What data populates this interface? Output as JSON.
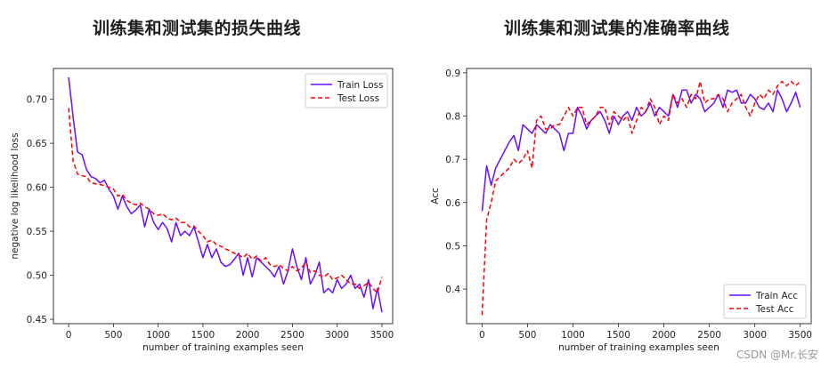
{
  "chart_data": [
    {
      "type": "line",
      "title": "训练集和测试集的损失曲线",
      "xlabel": "number of training examples seen",
      "ylabel": "negative log likelihood loss",
      "xlim": [
        -170,
        3620
      ],
      "ylim": [
        0.445,
        0.735
      ],
      "xticks": [
        0,
        500,
        1000,
        1500,
        2000,
        2500,
        3000,
        3500
      ],
      "yticks": [
        0.45,
        0.5,
        0.55,
        0.6,
        0.65,
        0.7
      ],
      "legend_position": "top-right",
      "x": [
        0,
        50,
        100,
        150,
        200,
        250,
        300,
        350,
        400,
        450,
        500,
        550,
        600,
        650,
        700,
        750,
        800,
        850,
        900,
        950,
        1000,
        1050,
        1100,
        1150,
        1200,
        1250,
        1300,
        1350,
        1400,
        1450,
        1500,
        1550,
        1600,
        1650,
        1700,
        1750,
        1800,
        1850,
        1900,
        1950,
        2000,
        2050,
        2100,
        2150,
        2200,
        2250,
        2300,
        2350,
        2400,
        2450,
        2500,
        2550,
        2600,
        2650,
        2700,
        2750,
        2800,
        2850,
        2900,
        2950,
        3000,
        3050,
        3100,
        3150,
        3200,
        3250,
        3300,
        3350,
        3400,
        3450,
        3500
      ],
      "series": [
        {
          "name": "Train Loss",
          "color": "#6a0dff",
          "dashed": false,
          "values": [
            0.725,
            0.68,
            0.64,
            0.637,
            0.62,
            0.612,
            0.61,
            0.605,
            0.608,
            0.598,
            0.59,
            0.575,
            0.59,
            0.578,
            0.57,
            0.574,
            0.58,
            0.555,
            0.575,
            0.56,
            0.552,
            0.56,
            0.553,
            0.538,
            0.56,
            0.545,
            0.55,
            0.545,
            0.555,
            0.538,
            0.52,
            0.535,
            0.52,
            0.53,
            0.515,
            0.51,
            0.512,
            0.518,
            0.525,
            0.5,
            0.52,
            0.498,
            0.52,
            0.515,
            0.51,
            0.505,
            0.498,
            0.51,
            0.49,
            0.505,
            0.53,
            0.51,
            0.495,
            0.52,
            0.49,
            0.5,
            0.515,
            0.48,
            0.485,
            0.48,
            0.495,
            0.485,
            0.49,
            0.5,
            0.485,
            0.49,
            0.475,
            0.495,
            0.462,
            0.485,
            0.458
          ]
        },
        {
          "name": "Test Loss",
          "color": "#ff0000",
          "dashed": true,
          "values": [
            0.69,
            0.63,
            0.615,
            0.613,
            0.612,
            0.605,
            0.604,
            0.603,
            0.602,
            0.6,
            0.598,
            0.59,
            0.592,
            0.585,
            0.582,
            0.58,
            0.582,
            0.578,
            0.575,
            0.57,
            0.568,
            0.57,
            0.565,
            0.563,
            0.565,
            0.56,
            0.56,
            0.555,
            0.556,
            0.55,
            0.545,
            0.538,
            0.54,
            0.535,
            0.533,
            0.53,
            0.528,
            0.525,
            0.523,
            0.52,
            0.525,
            0.518,
            0.522,
            0.516,
            0.52,
            0.512,
            0.51,
            0.512,
            0.508,
            0.505,
            0.51,
            0.505,
            0.508,
            0.515,
            0.503,
            0.505,
            0.5,
            0.498,
            0.502,
            0.495,
            0.497,
            0.5,
            0.495,
            0.49,
            0.49,
            0.485,
            0.488,
            0.492,
            0.485,
            0.48,
            0.498
          ]
        }
      ]
    },
    {
      "type": "line",
      "title": "训练集和测试集的准确率曲线",
      "xlabel": "number of training examples seen",
      "ylabel": "Acc",
      "xlim": [
        -170,
        3620
      ],
      "ylim": [
        0.32,
        0.91
      ],
      "xticks": [
        0,
        500,
        1000,
        1500,
        2000,
        2500,
        3000,
        3500
      ],
      "yticks": [
        0.4,
        0.5,
        0.6,
        0.7,
        0.8,
        0.9
      ],
      "legend_position": "bottom-right",
      "x": [
        0,
        50,
        100,
        150,
        200,
        250,
        300,
        350,
        400,
        450,
        500,
        550,
        600,
        650,
        700,
        750,
        800,
        850,
        900,
        950,
        1000,
        1050,
        1100,
        1150,
        1200,
        1250,
        1300,
        1350,
        1400,
        1450,
        1500,
        1550,
        1600,
        1650,
        1700,
        1750,
        1800,
        1850,
        1900,
        1950,
        2000,
        2050,
        2100,
        2150,
        2200,
        2250,
        2300,
        2350,
        2400,
        2450,
        2500,
        2550,
        2600,
        2650,
        2700,
        2750,
        2800,
        2850,
        2900,
        2950,
        3000,
        3050,
        3100,
        3150,
        3200,
        3250,
        3300,
        3350,
        3400,
        3450,
        3500
      ],
      "series": [
        {
          "name": "Train Acc",
          "color": "#6a0dff",
          "dashed": false,
          "values": [
            0.58,
            0.685,
            0.64,
            0.68,
            0.7,
            0.72,
            0.74,
            0.755,
            0.72,
            0.78,
            0.77,
            0.76,
            0.78,
            0.77,
            0.76,
            0.78,
            0.77,
            0.76,
            0.72,
            0.76,
            0.76,
            0.82,
            0.8,
            0.77,
            0.79,
            0.8,
            0.81,
            0.79,
            0.76,
            0.8,
            0.78,
            0.8,
            0.81,
            0.79,
            0.82,
            0.8,
            0.81,
            0.83,
            0.8,
            0.82,
            0.81,
            0.8,
            0.85,
            0.82,
            0.86,
            0.86,
            0.83,
            0.85,
            0.84,
            0.81,
            0.82,
            0.83,
            0.85,
            0.82,
            0.86,
            0.855,
            0.86,
            0.83,
            0.83,
            0.85,
            0.84,
            0.82,
            0.815,
            0.83,
            0.81,
            0.86,
            0.84,
            0.81,
            0.83,
            0.855,
            0.82
          ]
        },
        {
          "name": "Test Acc",
          "color": "#ff0000",
          "dashed": true,
          "values": [
            0.34,
            0.56,
            0.6,
            0.65,
            0.66,
            0.67,
            0.68,
            0.7,
            0.69,
            0.7,
            0.72,
            0.68,
            0.79,
            0.8,
            0.77,
            0.77,
            0.78,
            0.78,
            0.8,
            0.82,
            0.8,
            0.82,
            0.82,
            0.78,
            0.79,
            0.8,
            0.82,
            0.82,
            0.78,
            0.81,
            0.8,
            0.79,
            0.8,
            0.76,
            0.79,
            0.82,
            0.81,
            0.84,
            0.82,
            0.78,
            0.8,
            0.79,
            0.85,
            0.83,
            0.84,
            0.82,
            0.85,
            0.84,
            0.88,
            0.83,
            0.84,
            0.84,
            0.85,
            0.84,
            0.81,
            0.83,
            0.84,
            0.85,
            0.82,
            0.8,
            0.83,
            0.85,
            0.84,
            0.86,
            0.85,
            0.87,
            0.88,
            0.87,
            0.88,
            0.87,
            0.88
          ]
        }
      ]
    }
  ],
  "watermark": "CSDN @Mr.长安"
}
